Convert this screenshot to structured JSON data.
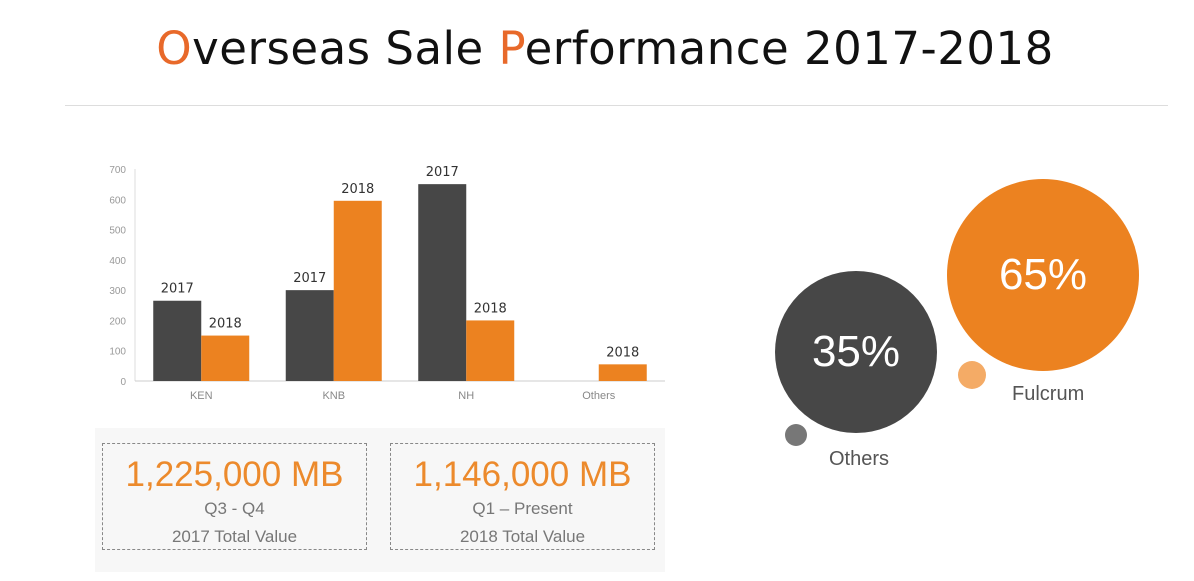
{
  "title": {
    "o": "O",
    "part1": "verseas Sale ",
    "p": "P",
    "part2": "erformance 2017-2018"
  },
  "chart_data": {
    "type": "bar",
    "categories": [
      "KEN",
      "KNB",
      "NH",
      "Others"
    ],
    "series": [
      {
        "name": "2017",
        "values": [
          265,
          300,
          650,
          null
        ],
        "color": "#474747"
      },
      {
        "name": "2018",
        "values": [
          150,
          595,
          200,
          55
        ],
        "color": "#ec8220"
      }
    ],
    "ylim": [
      0,
      700
    ],
    "yticks": [
      0,
      100,
      200,
      300,
      400,
      500,
      600,
      700
    ],
    "data_labels": "series name above each bar",
    "grid": false
  },
  "stats": [
    {
      "value": "1,225,000 MB",
      "period": "Q3 - Q4",
      "label": "2017 Total Value"
    },
    {
      "value": "1,146,000 MB",
      "period": "Q1 – Present",
      "label": "2018 Total Value"
    }
  ],
  "bubbles": [
    {
      "percent": "35%",
      "name": "Others",
      "color": "#474747"
    },
    {
      "percent": "65%",
      "name": "Fulcrum",
      "color": "#ec8220"
    }
  ]
}
